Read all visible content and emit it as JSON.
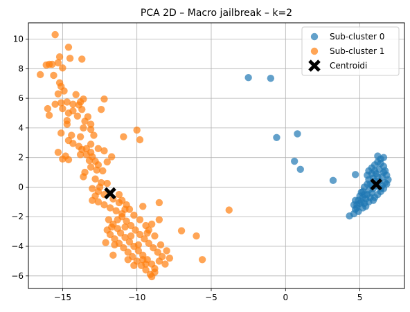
{
  "chart_data": {
    "type": "scatter",
    "title": "PCA 2D – Macro jailbreak – k=2",
    "xlabel": "",
    "ylabel": "",
    "xlim": [
      -17.3,
      8.0
    ],
    "ylim": [
      -6.85,
      11.1
    ],
    "xticks": [
      -15,
      -10,
      -5,
      0,
      5
    ],
    "yticks": [
      -6,
      -4,
      -2,
      0,
      2,
      4,
      6,
      8,
      10
    ],
    "grid": true,
    "legend_position": "top-right",
    "series": [
      {
        "name": "Sub-cluster 0",
        "color": "#1f77b4",
        "points": [
          [
            -2.5,
            7.4
          ],
          [
            -1.0,
            7.35
          ],
          [
            -0.6,
            3.35
          ],
          [
            0.8,
            3.6
          ],
          [
            0.6,
            1.75
          ],
          [
            1.0,
            1.2
          ],
          [
            3.2,
            0.45
          ],
          [
            4.7,
            0.85
          ],
          [
            4.3,
            -1.95
          ],
          [
            4.6,
            -1.8
          ],
          [
            4.7,
            -1.5
          ],
          [
            4.8,
            -1.2
          ],
          [
            4.9,
            -0.9
          ],
          [
            5.0,
            -0.6
          ],
          [
            5.1,
            -0.35
          ],
          [
            4.9,
            -1.65
          ],
          [
            5.2,
            -1.4
          ],
          [
            5.3,
            -1.1
          ],
          [
            5.4,
            -0.8
          ],
          [
            5.5,
            -0.5
          ],
          [
            5.6,
            -0.2
          ],
          [
            5.2,
            -0.7
          ],
          [
            5.1,
            -1.0
          ],
          [
            5.4,
            -1.3
          ],
          [
            5.6,
            -1.0
          ],
          [
            5.7,
            -0.7
          ],
          [
            5.8,
            -0.4
          ],
          [
            5.9,
            -0.1
          ],
          [
            5.7,
            0.2
          ],
          [
            5.6,
            0.5
          ],
          [
            5.5,
            0.8
          ],
          [
            5.6,
            1.1
          ],
          [
            5.8,
            1.3
          ],
          [
            6.0,
            1.5
          ],
          [
            6.2,
            1.7
          ],
          [
            6.4,
            1.9
          ],
          [
            6.6,
            2.0
          ],
          [
            6.2,
            2.1
          ],
          [
            6.4,
            1.6
          ],
          [
            6.6,
            1.4
          ],
          [
            6.7,
            1.1
          ],
          [
            6.8,
            0.8
          ],
          [
            6.9,
            0.5
          ],
          [
            6.8,
            0.2
          ],
          [
            6.6,
            -0.1
          ],
          [
            6.4,
            -0.3
          ],
          [
            6.2,
            -0.5
          ],
          [
            6.0,
            -0.7
          ],
          [
            5.9,
            -0.9
          ],
          [
            6.1,
            0.1
          ],
          [
            6.3,
            0.4
          ],
          [
            6.5,
            0.7
          ],
          [
            6.6,
            1.0
          ],
          [
            6.3,
            1.2
          ],
          [
            6.1,
            0.9
          ],
          [
            5.9,
            0.6
          ],
          [
            5.8,
            0.9
          ],
          [
            6.0,
            1.1
          ],
          [
            6.5,
            0.1
          ],
          [
            6.7,
            0.3
          ],
          [
            6.4,
            -0.1
          ],
          [
            6.2,
            0.7
          ],
          [
            6.0,
            0.4
          ],
          [
            5.8,
            0.1
          ],
          [
            5.5,
            0.2
          ],
          [
            5.3,
            0.0
          ],
          [
            5.2,
            -0.3
          ],
          [
            5.0,
            -1.1
          ],
          [
            4.8,
            -1.4
          ],
          [
            4.6,
            -1.2
          ],
          [
            4.7,
            -0.9
          ],
          [
            5.3,
            -0.5
          ]
        ]
      },
      {
        "name": "Sub-cluster 1",
        "color": "#ff7f0e",
        "points": [
          [
            -15.5,
            10.3
          ],
          [
            -14.6,
            9.45
          ],
          [
            -15.2,
            8.8
          ],
          [
            -14.5,
            8.7
          ],
          [
            -13.7,
            8.65
          ],
          [
            -15.7,
            8.3
          ],
          [
            -15.9,
            8.3
          ],
          [
            -16.1,
            8.25
          ],
          [
            -15.3,
            8.4
          ],
          [
            -15.0,
            8.05
          ],
          [
            -16.5,
            7.6
          ],
          [
            -15.6,
            7.55
          ],
          [
            -15.2,
            7.05
          ],
          [
            -15.1,
            6.8
          ],
          [
            -15.3,
            6.3
          ],
          [
            -14.9,
            6.5
          ],
          [
            -14.1,
            6.25
          ],
          [
            -13.6,
            5.95
          ],
          [
            -13.8,
            5.75
          ],
          [
            -12.2,
            5.95
          ],
          [
            -15.5,
            5.6
          ],
          [
            -15.1,
            5.7
          ],
          [
            -14.7,
            5.75
          ],
          [
            -14.3,
            5.6
          ],
          [
            -13.9,
            5.55
          ],
          [
            -13.7,
            5.25
          ],
          [
            -14.3,
            5.15
          ],
          [
            -14.6,
            5.0
          ],
          [
            -15.0,
            5.3
          ],
          [
            -16.0,
            5.3
          ],
          [
            -15.9,
            4.85
          ],
          [
            -12.4,
            5.25
          ],
          [
            -14.0,
            4.8
          ],
          [
            -13.3,
            4.75
          ],
          [
            -13.5,
            4.45
          ],
          [
            -14.7,
            4.5
          ],
          [
            -14.7,
            4.25
          ],
          [
            -13.6,
            4.0
          ],
          [
            -13.1,
            4.25
          ],
          [
            -13.1,
            3.9
          ],
          [
            -15.1,
            3.65
          ],
          [
            -14.4,
            3.5
          ],
          [
            -13.8,
            3.4
          ],
          [
            -12.9,
            3.5
          ],
          [
            -14.6,
            3.15
          ],
          [
            -14.3,
            2.95
          ],
          [
            -13.9,
            2.75
          ],
          [
            -13.7,
            2.55
          ],
          [
            -13.4,
            2.6
          ],
          [
            -13.1,
            2.9
          ],
          [
            -12.6,
            2.6
          ],
          [
            -13.8,
            2.2
          ],
          [
            -13.4,
            2.2
          ],
          [
            -13.1,
            2.35
          ],
          [
            -13.0,
            2.05
          ],
          [
            -12.2,
            2.45
          ],
          [
            -15.3,
            2.35
          ],
          [
            -14.8,
            2.1
          ],
          [
            -14.6,
            1.85
          ],
          [
            -15.0,
            1.9
          ],
          [
            -13.2,
            1.8
          ],
          [
            -12.8,
            1.75
          ],
          [
            -12.6,
            1.5
          ],
          [
            -13.1,
            1.35
          ],
          [
            -12.7,
            1.15
          ],
          [
            -12.3,
            1.1
          ],
          [
            -12.0,
            1.7
          ],
          [
            -11.7,
            2.05
          ],
          [
            -10.9,
            3.4
          ],
          [
            -10.0,
            3.85
          ],
          [
            -9.8,
            3.2
          ],
          [
            -13.5,
            1.0
          ],
          [
            -13.6,
            0.7
          ],
          [
            -12.8,
            0.55
          ],
          [
            -12.4,
            0.3
          ],
          [
            -12.0,
            0.25
          ],
          [
            -12.5,
            0.0
          ],
          [
            -13.0,
            -0.1
          ],
          [
            -12.6,
            -0.3
          ],
          [
            -12.2,
            -0.5
          ],
          [
            -12.8,
            -0.6
          ],
          [
            -13.0,
            -0.9
          ],
          [
            -12.6,
            -1.0
          ],
          [
            -12.2,
            -1.2
          ],
          [
            -11.8,
            -1.4
          ],
          [
            -11.4,
            -1.6
          ],
          [
            -11.0,
            -1.8
          ],
          [
            -11.6,
            -0.8
          ],
          [
            -11.2,
            -0.5
          ],
          [
            -11.0,
            -0.9
          ],
          [
            -10.7,
            -1.2
          ],
          [
            -10.5,
            -1.5
          ],
          [
            -10.2,
            -1.9
          ],
          [
            -9.8,
            -2.2
          ],
          [
            -9.6,
            -1.3
          ],
          [
            -9.4,
            -2.6
          ],
          [
            -11.9,
            -2.2
          ],
          [
            -11.6,
            -2.5
          ],
          [
            -11.3,
            -2.8
          ],
          [
            -11.1,
            -3.1
          ],
          [
            -10.8,
            -3.4
          ],
          [
            -10.5,
            -3.7
          ],
          [
            -10.2,
            -4.0
          ],
          [
            -9.9,
            -4.3
          ],
          [
            -9.6,
            -4.6
          ],
          [
            -9.3,
            -4.9
          ],
          [
            -9.0,
            -5.2
          ],
          [
            -8.8,
            -5.5
          ],
          [
            -8.5,
            -5.0
          ],
          [
            -8.3,
            -4.7
          ],
          [
            -8.6,
            -4.4
          ],
          [
            -8.9,
            -4.1
          ],
          [
            -9.2,
            -3.8
          ],
          [
            -9.5,
            -3.5
          ],
          [
            -9.8,
            -3.2
          ],
          [
            -10.1,
            -2.9
          ],
          [
            -10.4,
            -2.6
          ],
          [
            -10.7,
            -2.3
          ],
          [
            -11.0,
            -2.0
          ],
          [
            -11.3,
            -2.2
          ],
          [
            -11.7,
            -2.7
          ],
          [
            -12.0,
            -2.9
          ],
          [
            -11.8,
            -3.2
          ],
          [
            -11.5,
            -3.5
          ],
          [
            -11.2,
            -3.8
          ],
          [
            -10.9,
            -4.1
          ],
          [
            -10.6,
            -4.4
          ],
          [
            -10.3,
            -4.7
          ],
          [
            -10.0,
            -5.0
          ],
          [
            -9.7,
            -5.3
          ],
          [
            -9.4,
            -5.6
          ],
          [
            -9.1,
            -5.9
          ],
          [
            -8.8,
            -5.75
          ],
          [
            -9.0,
            -6.05
          ],
          [
            -8.1,
            -5.2
          ],
          [
            -7.8,
            -4.8
          ],
          [
            -8.0,
            -4.3
          ],
          [
            -8.4,
            -3.9
          ],
          [
            -8.8,
            -3.3
          ],
          [
            -9.2,
            -2.9
          ],
          [
            -9.0,
            -2.5
          ],
          [
            -8.5,
            -2.2
          ],
          [
            -8.5,
            -1.05
          ],
          [
            -11.2,
            -1.05
          ],
          [
            -10.8,
            -1.5
          ],
          [
            -12.1,
            -3.75
          ],
          [
            -11.6,
            -4.6
          ],
          [
            -7.0,
            -2.95
          ],
          [
            -6.0,
            -3.3
          ],
          [
            -5.6,
            -4.9
          ],
          [
            -3.8,
            -1.55
          ],
          [
            -9.3,
            -3.1
          ],
          [
            -10.4,
            -3.3
          ],
          [
            -9.9,
            -3.9
          ],
          [
            -10.6,
            -4.9
          ],
          [
            -9.6,
            -4.9
          ],
          [
            -10.2,
            -5.3
          ],
          [
            -9.4,
            -5.2
          ],
          [
            -10.8,
            -2.7
          ],
          [
            -11.5,
            -3.9
          ]
        ]
      },
      {
        "name": "Centroidi",
        "color": "#000000",
        "marker": "X",
        "points": [
          [
            -11.8,
            -0.42
          ],
          [
            6.1,
            0.18
          ]
        ]
      }
    ]
  }
}
